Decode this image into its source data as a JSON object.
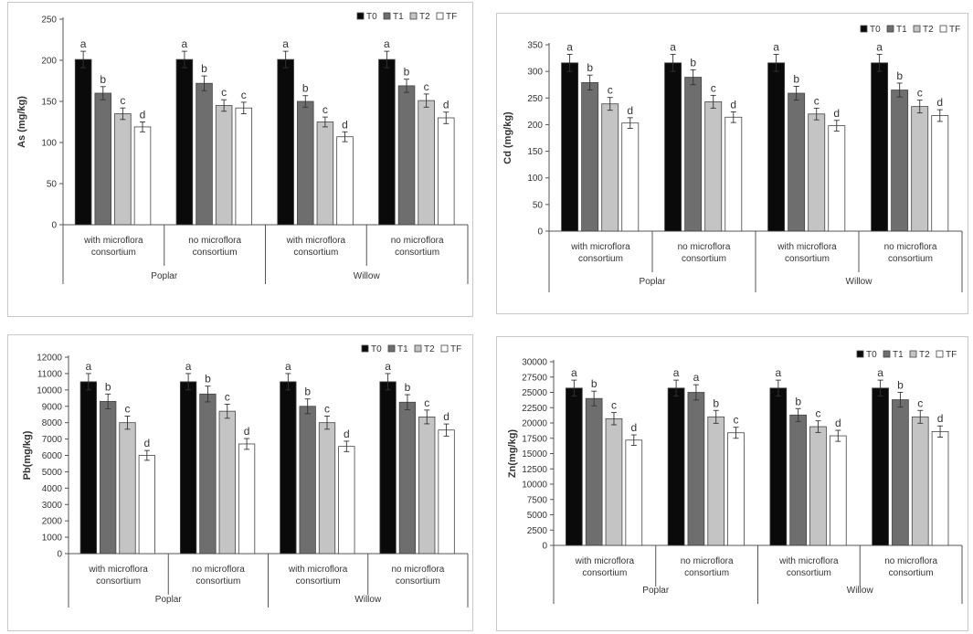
{
  "chart_data": [
    {
      "type": "bar",
      "ylabel": "As (mg/kg)",
      "ylim": [
        0,
        250
      ],
      "yticks": [
        "0",
        "50",
        "100",
        "150",
        "200",
        "250"
      ],
      "ytick_values": [
        0,
        50,
        100,
        150,
        200,
        250
      ],
      "legend": [
        "T0",
        "T1",
        "T2",
        "TF"
      ],
      "groups": [
        {
          "label_line1": "with microflora",
          "label_line2": "consortium",
          "values": [
            201,
            160,
            135,
            119
          ],
          "errors": [
            10,
            8,
            7,
            6
          ],
          "letters": [
            "a",
            "b",
            "c",
            "d"
          ]
        },
        {
          "label_line1": "no microflora",
          "label_line2": "consortium",
          "values": [
            201,
            172,
            145,
            142
          ],
          "errors": [
            10,
            9,
            7,
            7
          ],
          "letters": [
            "a",
            "b",
            "c",
            "c"
          ]
        },
        {
          "label_line1": "with microflora",
          "label_line2": "consortium",
          "values": [
            201,
            150,
            125,
            107
          ],
          "errors": [
            10,
            7,
            6,
            6
          ],
          "letters": [
            "a",
            "b",
            "c",
            "d"
          ]
        },
        {
          "label_line1": "no microflora",
          "label_line2": "consortium",
          "values": [
            201,
            169,
            151,
            130
          ],
          "errors": [
            10,
            8,
            8,
            7
          ],
          "letters": [
            "a",
            "b",
            "c",
            "d"
          ]
        }
      ],
      "species": [
        "Poplar",
        "Willow"
      ]
    },
    {
      "type": "bar",
      "ylabel": "Cd (mg/kg)",
      "ylim": [
        0,
        350
      ],
      "yticks": [
        "0",
        "50",
        "100",
        "150",
        "200",
        "250",
        "300",
        "350"
      ],
      "ytick_values": [
        0,
        50,
        100,
        150,
        200,
        250,
        300,
        350
      ],
      "legend": [
        "T0",
        "T1",
        "T2",
        "TF"
      ],
      "groups": [
        {
          "label_line1": "with microflora",
          "label_line2": "consortium",
          "values": [
            316,
            279,
            239,
            203
          ],
          "errors": [
            16,
            14,
            12,
            10
          ],
          "letters": [
            "a",
            "b",
            "c",
            "d"
          ]
        },
        {
          "label_line1": "no microflora",
          "label_line2": "consortium",
          "values": [
            316,
            289,
            243,
            214
          ],
          "errors": [
            16,
            14,
            12,
            10
          ],
          "letters": [
            "a",
            "b",
            "c",
            "d"
          ]
        },
        {
          "label_line1": "with microflora",
          "label_line2": "consortium",
          "values": [
            316,
            259,
            220,
            198
          ],
          "errors": [
            16,
            13,
            11,
            10
          ],
          "letters": [
            "a",
            "b",
            "c",
            "d"
          ]
        },
        {
          "label_line1": "no microflora",
          "label_line2": "consortium",
          "values": [
            316,
            265,
            234,
            217
          ],
          "errors": [
            16,
            13,
            12,
            11
          ],
          "letters": [
            "a",
            "b",
            "c",
            "d"
          ]
        }
      ],
      "species": [
        "Poplar",
        "Willow"
      ]
    },
    {
      "type": "bar",
      "ylabel": "Pb(mg/kg)",
      "ylim": [
        0,
        12000
      ],
      "yticks": [
        "0",
        "1000",
        "2000",
        "3000",
        "4000",
        "5000",
        "6000",
        "7000",
        "8000",
        "9000",
        "10000",
        "11000",
        "12000"
      ],
      "ytick_values": [
        0,
        1000,
        2000,
        3000,
        4000,
        5000,
        6000,
        7000,
        8000,
        9000,
        10000,
        11000,
        12000
      ],
      "legend": [
        "T0",
        "T1",
        "T2",
        "TF"
      ],
      "groups": [
        {
          "label_line1": "with microflora",
          "label_line2": "consortium",
          "values": [
            10500,
            9300,
            8000,
            6000
          ],
          "errors": [
            500,
            450,
            400,
            300
          ],
          "letters": [
            "a",
            "b",
            "c",
            "d"
          ]
        },
        {
          "label_line1": "no microflora",
          "label_line2": "consortium",
          "values": [
            10500,
            9750,
            8700,
            6700
          ],
          "errors": [
            500,
            480,
            430,
            330
          ],
          "letters": [
            "a",
            "b",
            "c",
            "d"
          ]
        },
        {
          "label_line1": "with microflora",
          "label_line2": "consortium",
          "values": [
            10500,
            9000,
            8000,
            6550
          ],
          "errors": [
            500,
            450,
            400,
            320
          ],
          "letters": [
            "a",
            "b",
            "c",
            "d"
          ]
        },
        {
          "label_line1": "no microflora",
          "label_line2": "consortium",
          "values": [
            10500,
            9250,
            8350,
            7550
          ],
          "errors": [
            500,
            460,
            420,
            370
          ],
          "letters": [
            "a",
            "b",
            "c",
            "d"
          ]
        }
      ],
      "species": [
        "Poplar",
        "Willow"
      ]
    },
    {
      "type": "bar",
      "ylabel": "Zn(mg/kg)",
      "ylim": [
        0,
        30000
      ],
      "yticks": [
        "0",
        "2500",
        "5000",
        "7500",
        "10000",
        "12500",
        "15000",
        "17500",
        "20000",
        "22500",
        "25000",
        "27500",
        "30000"
      ],
      "ytick_values": [
        0,
        2500,
        5000,
        7500,
        10000,
        12500,
        15000,
        17500,
        20000,
        22500,
        25000,
        27500,
        30000
      ],
      "legend": [
        "T0",
        "T1",
        "T2",
        "TF"
      ],
      "groups": [
        {
          "label_line1": "with microflora",
          "label_line2": "consortium",
          "values": [
            25700,
            24000,
            20700,
            17200
          ],
          "errors": [
            1300,
            1200,
            1000,
            850
          ],
          "letters": [
            "a",
            "b",
            "c",
            "d"
          ]
        },
        {
          "label_line1": "no microflora",
          "label_line2": "consortium",
          "values": [
            25700,
            25000,
            21000,
            18400
          ],
          "errors": [
            1300,
            1250,
            1050,
            900
          ],
          "letters": [
            "a",
            "a",
            "b",
            "c"
          ]
        },
        {
          "label_line1": "with microflora",
          "label_line2": "consortium",
          "values": [
            25700,
            21300,
            19400,
            17900
          ],
          "errors": [
            1300,
            1050,
            950,
            900
          ],
          "letters": [
            "a",
            "b",
            "c",
            "d"
          ]
        },
        {
          "label_line1": "no microflora",
          "label_line2": "consortium",
          "values": [
            25700,
            23800,
            21000,
            18600
          ],
          "errors": [
            1300,
            1200,
            1050,
            920
          ],
          "letters": [
            "a",
            "b",
            "c",
            "d"
          ]
        }
      ],
      "species": [
        "Poplar",
        "Willow"
      ]
    }
  ],
  "colors": {
    "T0": "#0a0a0a",
    "T1": "#6e6e6e",
    "T2": "#c4c4c4",
    "TF": "#ffffff"
  }
}
